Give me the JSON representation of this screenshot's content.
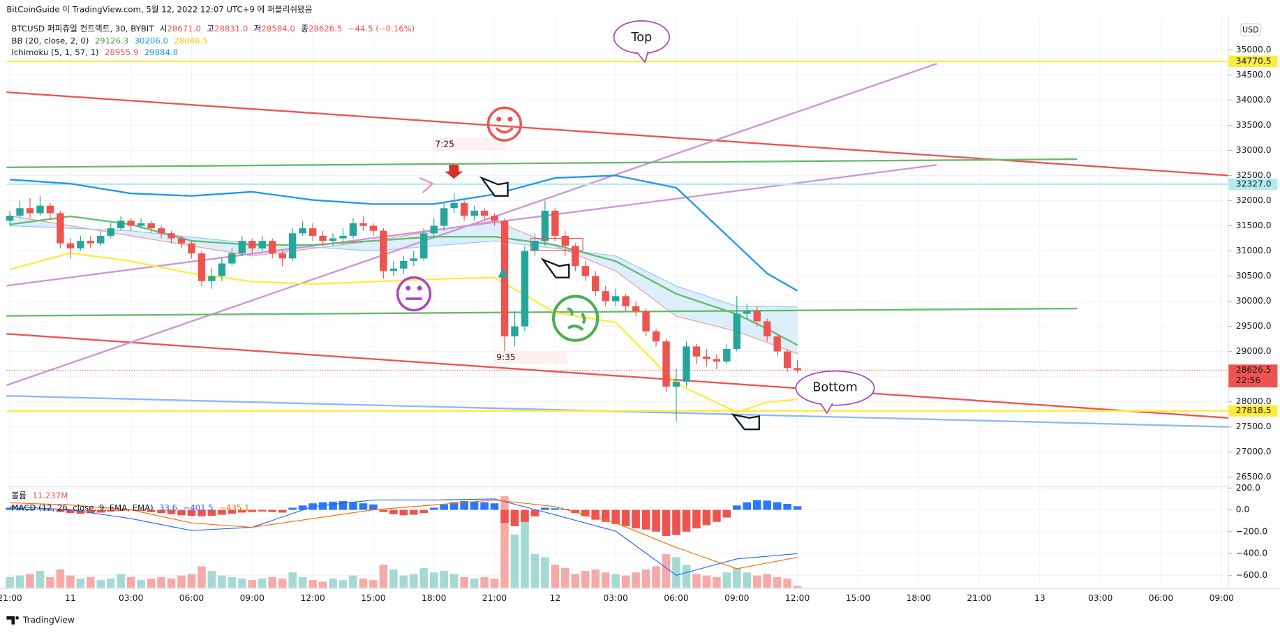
{
  "header": "BitCoinGuide 이 TradingView.com, 5월 12, 2022 12:07 UTC+9 에 퍼블리쉬됐음",
  "footer": "TradingView",
  "currency": "USD",
  "legend": {
    "symbol": "BTCUSD 퍼피츄얼 컨트랙트, 30, BYBIT",
    "ohlc": [
      {
        "key": "시",
        "value": "28671.0"
      },
      {
        "key": "고",
        "value": "28831.0"
      },
      {
        "key": "저",
        "value": "28584.0"
      },
      {
        "key": "종",
        "value": "28626.5"
      }
    ],
    "change": "−44.5 (−0.16%)",
    "bb_title": "BB (20, close, 2, 0)",
    "bb_values": [
      "29126.3",
      "30206.0",
      "28046.5"
    ],
    "ichimoku_title": "Ichimoku (5, 1, 57, 1)",
    "ichimoku_values": [
      "28955.9",
      "29884.8"
    ],
    "volume_title": "볼륨",
    "volume_value": "11.237M",
    "macd_title": "MACD (12, 26, close, 9, EMA, EMA)",
    "macd_values": [
      "33.6",
      "−401.5",
      "−435.1"
    ]
  },
  "annotations": {
    "top": "Top",
    "bottom": "Bottom",
    "time1": "7:25",
    "time2": "9:35",
    "countdown": "22:56"
  },
  "chart_data": {
    "type": "candlestick",
    "xlim": [
      -0.32,
      120.69
    ],
    "xticks": [
      {
        "value": 0,
        "label": "21:00"
      },
      {
        "value": 6,
        "label": "11"
      },
      {
        "value": 12,
        "label": "03:00"
      },
      {
        "value": 18,
        "label": "06:00"
      },
      {
        "value": 24,
        "label": "09:00"
      },
      {
        "value": 30,
        "label": "12:00"
      },
      {
        "value": 36,
        "label": "15:00"
      },
      {
        "value": 42,
        "label": "18:00"
      },
      {
        "value": 48,
        "label": "21:00"
      },
      {
        "value": 54,
        "label": "12"
      },
      {
        "value": 60,
        "label": "03:00"
      },
      {
        "value": 66,
        "label": "06:00"
      },
      {
        "value": 72,
        "label": "09:00"
      },
      {
        "value": 78,
        "label": "12:00"
      },
      {
        "value": 84,
        "label": "15:00"
      },
      {
        "value": 90,
        "label": "18:00"
      },
      {
        "value": 96,
        "label": "21:00"
      },
      {
        "value": 102,
        "label": "13"
      },
      {
        "value": 108,
        "label": "03:00"
      },
      {
        "value": 114,
        "label": "06:00"
      },
      {
        "value": 120,
        "label": "09:00"
      }
    ],
    "ylim": [
      26331,
      35633
    ],
    "yticks": [
      {
        "value": 26500,
        "label": "26500.0"
      },
      {
        "value": 27000,
        "label": "27000.0"
      },
      {
        "value": 27500,
        "label": "27500.0"
      },
      {
        "value": 28000,
        "label": "28000.0"
      },
      {
        "value": 28500,
        "label": "28500.0"
      },
      {
        "value": 29000,
        "label": "29000.0"
      },
      {
        "value": 29500,
        "label": "29500.0"
      },
      {
        "value": 30000,
        "label": "30000.0"
      },
      {
        "value": 30500,
        "label": "30500.0"
      },
      {
        "value": 31000,
        "label": "31000.0"
      },
      {
        "value": 31500,
        "label": "31500.0"
      },
      {
        "value": 32000,
        "label": "32000.0"
      },
      {
        "value": 32500,
        "label": "32500.0"
      },
      {
        "value": 33000,
        "label": "33000.0"
      },
      {
        "value": 33500,
        "label": "33500.0"
      },
      {
        "value": 34000,
        "label": "34000.0"
      },
      {
        "value": 34500,
        "label": "34500.0"
      },
      {
        "value": 35000,
        "label": "35000.0"
      }
    ],
    "grid": true,
    "up_color": "#26a69a",
    "down_color": "#ef5350",
    "open": [
      31600,
      31700,
      31850,
      31750,
      31900,
      31750,
      31150,
      31050,
      31200,
      31150,
      31300,
      31450,
      31600,
      31500,
      31550,
      31450,
      31350,
      31250,
      31150,
      30950,
      30400,
      30500,
      30750,
      30950,
      31200,
      31050,
      31200,
      30950,
      30850,
      31350,
      31450,
      31300,
      31200,
      31250,
      31300,
      31550,
      31500,
      31400,
      30600,
      30650,
      30800,
      30850,
      31350,
      31500,
      31850,
      31950,
      31700,
      31800,
      31700,
      31600,
      29300,
      29500,
      31000,
      31200,
      31800,
      31300,
      31100,
      30700,
      30500,
      30200,
      30000,
      30100,
      29900,
      29800,
      29400,
      29200,
      28300,
      28400,
      29100,
      28900,
      28850,
      28800,
      29050,
      29750,
      29800,
      29600,
      29300,
      29000,
      28671
    ],
    "high": [
      31800,
      32000,
      32050,
      32100,
      31950,
      31800,
      31250,
      31300,
      31300,
      31400,
      31550,
      31700,
      31650,
      31650,
      31600,
      31500,
      31400,
      31300,
      31200,
      31000,
      30650,
      30850,
      31050,
      31300,
      31250,
      31300,
      31250,
      31000,
      31450,
      31600,
      31550,
      31400,
      31350,
      31450,
      31650,
      31700,
      31550,
      31450,
      30800,
      30900,
      31000,
      31450,
      31650,
      31950,
      32150,
      32000,
      31900,
      31850,
      31750,
      31650,
      29800,
      31100,
      31350,
      32000,
      31850,
      31400,
      31150,
      30800,
      30600,
      30300,
      30250,
      30150,
      30000,
      29850,
      29450,
      29250,
      28650,
      29200,
      29150,
      29050,
      28950,
      29150,
      30100,
      29950,
      29900,
      29650,
      29350,
      29050,
      28831
    ],
    "low": [
      31500,
      31650,
      31650,
      31700,
      31650,
      31050,
      30850,
      31000,
      31050,
      31100,
      31250,
      31400,
      31400,
      31450,
      31350,
      31250,
      31150,
      31050,
      30850,
      30300,
      30250,
      30400,
      30700,
      30900,
      30950,
      31000,
      30850,
      30700,
      30800,
      31300,
      31200,
      31100,
      31100,
      31150,
      31250,
      31400,
      31300,
      30450,
      30500,
      30550,
      30700,
      30800,
      31250,
      31400,
      31750,
      31600,
      31600,
      31600,
      31500,
      29000,
      29100,
      29400,
      30900,
      31100,
      31200,
      30900,
      30600,
      30400,
      30100,
      29900,
      29900,
      29800,
      29700,
      29300,
      29100,
      28200,
      27600,
      28300,
      28750,
      28700,
      28650,
      28750,
      29000,
      29650,
      29500,
      29200,
      28900,
      28600,
      28584
    ],
    "close": [
      31700,
      31850,
      31750,
      31900,
      31750,
      31150,
      31050,
      31200,
      31150,
      31300,
      31450,
      31600,
      31500,
      31550,
      31450,
      31350,
      31250,
      31150,
      30950,
      30400,
      30500,
      30750,
      30950,
      31200,
      31050,
      31200,
      30950,
      30850,
      31350,
      31450,
      31300,
      31200,
      31250,
      31300,
      31550,
      31500,
      31400,
      30600,
      30650,
      30800,
      30850,
      31350,
      31500,
      31850,
      31950,
      31700,
      31800,
      31700,
      31600,
      29300,
      29500,
      31000,
      31200,
      31800,
      31300,
      31100,
      30700,
      30500,
      30200,
      30000,
      30100,
      29900,
      29800,
      29400,
      29200,
      28300,
      28400,
      29100,
      28900,
      28850,
      28800,
      29050,
      29750,
      29800,
      29600,
      29300,
      29000,
      28671,
      28626.5
    ],
    "bb": {
      "x": [
        0,
        6,
        12,
        18,
        24,
        30,
        36,
        42,
        48,
        54,
        60,
        66,
        72,
        75,
        78
      ],
      "upper": {
        "color": "#2196f3",
        "values": [
          32419,
          32338,
          32143,
          32094,
          32175,
          32013,
          31932,
          31932,
          32127,
          32451,
          32500,
          32256,
          31120,
          30552,
          30206.0
        ]
      },
      "basis": {
        "color": "#66bb6a",
        "values": [
          31526,
          31688,
          31526,
          31201,
          31120,
          31120,
          31201,
          31282,
          31282,
          31120,
          30795,
          30146,
          29740,
          29450,
          29126.3
        ]
      },
      "lower": {
        "color": "#ffeb3b",
        "values": [
          30633,
          30958,
          30795,
          30552,
          30390,
          30341,
          30390,
          30438,
          30471,
          29773,
          29578,
          28360,
          27792,
          27990,
          28046.5
        ]
      }
    },
    "ichimoku": {
      "x": [
        0,
        12,
        24,
        36,
        48,
        60,
        66,
        72,
        78
      ],
      "span_a": {
        "color": "#ef9a9a",
        "values": [
          31700,
          31300,
          30900,
          31200,
          31600,
          30600,
          29700,
          29400,
          28955.9
        ]
      },
      "span_b": {
        "color": "#90caf9",
        "values": [
          31500,
          31400,
          31150,
          31000,
          31200,
          30900,
          30300,
          29900,
          29884.8
        ]
      },
      "fill": "#bbdefb"
    },
    "drawings": [
      {
        "x": [
          -0.32,
          120.69
        ],
        "y": [
          34156,
          32500
        ],
        "color": "#ef5350"
      },
      {
        "x": [
          -0.32,
          120.69
        ],
        "y": [
          29351,
          27679
        ],
        "color": "#ef5350"
      },
      {
        "x": [
          -0.32,
          91.8
        ],
        "y": [
          28328,
          34724
        ],
        "color": "#ce93d8"
      },
      {
        "x": [
          -0.32,
          91.8
        ],
        "y": [
          30308,
          32711
        ],
        "color": "#ce93d8"
      },
      {
        "x": [
          -0.32,
          105.7
        ],
        "y": [
          32662,
          32825
        ],
        "color": "#66bb6a"
      },
      {
        "x": [
          -0.32,
          105.7
        ],
        "y": [
          29708,
          29854
        ],
        "color": "#66bb6a"
      },
      {
        "x": [
          -0.32,
          120.69
        ],
        "y": [
          28117,
          27500
        ],
        "color": "#90b8f0"
      }
    ],
    "levels": [
      {
        "value": 34770.5,
        "color": "#ffeb3b",
        "text_color": "#131722"
      },
      {
        "value": 32327,
        "label": "32327.0",
        "color": "#b2ebf2",
        "text_color": "#131722"
      },
      {
        "value": 28626.5,
        "color": "#ef5350",
        "text_color": "#ffffff",
        "dotted": true
      },
      {
        "value": 27818.5,
        "color": "#ffeb3b",
        "text_color": "#131722"
      }
    ],
    "volume": {
      "up_color": "#a5d9d4",
      "down_color": "#f6aaa8",
      "values": [
        70,
        80,
        90,
        110,
        70,
        120,
        80,
        60,
        70,
        50,
        60,
        90,
        70,
        50,
        60,
        70,
        60,
        80,
        90,
        140,
        110,
        80,
        70,
        60,
        50,
        60,
        70,
        60,
        100,
        70,
        50,
        40,
        60,
        50,
        80,
        60,
        50,
        150,
        120,
        80,
        90,
        130,
        100,
        110,
        90,
        70,
        60,
        70,
        60,
        600,
        350,
        480,
        220,
        200,
        150,
        130,
        90,
        110,
        120,
        100,
        90,
        80,
        100,
        120,
        140,
        220,
        200,
        150,
        90,
        80,
        70,
        100,
        130,
        100,
        80,
        90,
        70,
        60,
        11.237
      ]
    },
    "macd": {
      "ylim": [
        -714,
        207
      ],
      "yticks": [
        {
          "value": 200,
          "label": "200.0"
        },
        {
          "value": 0,
          "label": "0.0"
        },
        {
          "value": -200,
          "label": "−200.0"
        },
        {
          "value": -400,
          "label": "−400.0"
        },
        {
          "value": -600,
          "label": "−600.0"
        }
      ],
      "pos_color": "#2979ff",
      "neg_color": "#ef5350",
      "histogram": [
        20,
        15,
        10,
        5,
        -5,
        -20,
        -30,
        -35,
        -30,
        -25,
        -15,
        -10,
        -5,
        -10,
        -20,
        -30,
        -40,
        -50,
        -55,
        -60,
        -55,
        -45,
        -35,
        -25,
        -20,
        -15,
        -20,
        -25,
        20,
        40,
        60,
        70,
        75,
        80,
        70,
        60,
        50,
        -20,
        -40,
        -50,
        -45,
        -30,
        20,
        50,
        70,
        80,
        75,
        70,
        60,
        -120,
        -150,
        -110,
        -60,
        20,
        15,
        10,
        -30,
        -60,
        -90,
        -110,
        -130,
        -150,
        -170,
        -180,
        -200,
        -240,
        -230,
        -200,
        -170,
        -140,
        -110,
        -70,
        40,
        70,
        90,
        85,
        70,
        55,
        33.6
      ],
      "x": [
        0,
        6,
        12,
        18,
        24,
        30,
        36,
        42,
        48,
        54,
        60,
        66,
        72,
        78
      ],
      "macd_line": {
        "color": "#2962ff",
        "values": [
          30,
          0,
          -80,
          -190,
          -160,
          30,
          90,
          90,
          100,
          -45,
          -195,
          -600,
          -450,
          -401.5
        ]
      },
      "signal_line": {
        "color": "#ff6d00",
        "values": [
          65,
          45,
          0,
          -120,
          -160,
          -80,
          0,
          45,
          90,
          30,
          -120,
          -345,
          -540,
          -435.1
        ]
      }
    }
  }
}
